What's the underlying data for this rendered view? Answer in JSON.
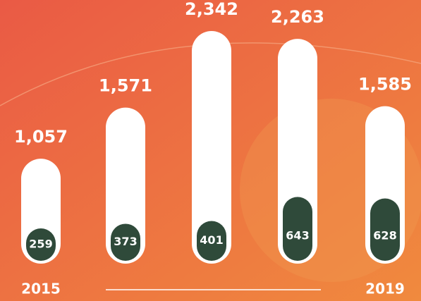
{
  "chart_data": {
    "type": "bar",
    "categories": [
      "2015",
      null,
      null,
      null,
      "2019"
    ],
    "series": [
      {
        "color": "#ffffff",
        "values": [
          1057,
          1571,
          2342,
          2263,
          1585
        ],
        "value_labels": [
          "1,057",
          "1,571",
          "2,342",
          "2,263",
          "1,585"
        ]
      },
      {
        "color": "#2f4a3a",
        "values": [
          259,
          373,
          401,
          643,
          628
        ]
      }
    ]
  }
}
